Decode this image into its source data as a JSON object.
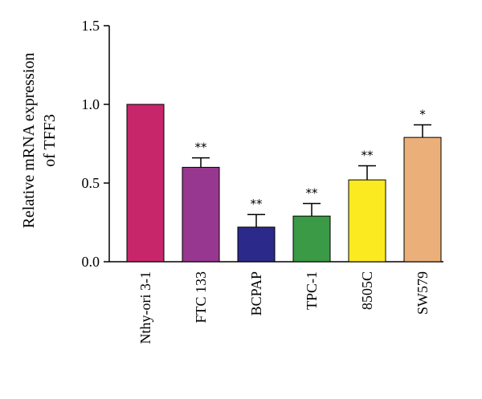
{
  "chart_data": {
    "type": "bar",
    "ylabel_lines": [
      "Relative mRNA expression",
      "of TFF3"
    ],
    "ylim": [
      0,
      1.5
    ],
    "yticks": [
      "0.0",
      "0.5",
      "1.0",
      "1.5"
    ],
    "ytick_values": [
      0,
      0.5,
      1.0,
      1.5
    ],
    "grid": false,
    "categories": [
      "Nthy-ori 3-1",
      "FTC 133",
      "BCPAP",
      "TPC-1",
      "8505C",
      "SW579"
    ],
    "values": [
      1.0,
      0.6,
      0.22,
      0.29,
      0.52,
      0.79
    ],
    "errors": [
      0,
      0.06,
      0.08,
      0.08,
      0.09,
      0.08
    ],
    "significance": [
      "",
      "**",
      "**",
      "**",
      "**",
      "*"
    ],
    "colors": [
      "#C8266B",
      "#98378F",
      "#2B2A8A",
      "#3A9A45",
      "#FBEA1F",
      "#EBB07A"
    ]
  }
}
